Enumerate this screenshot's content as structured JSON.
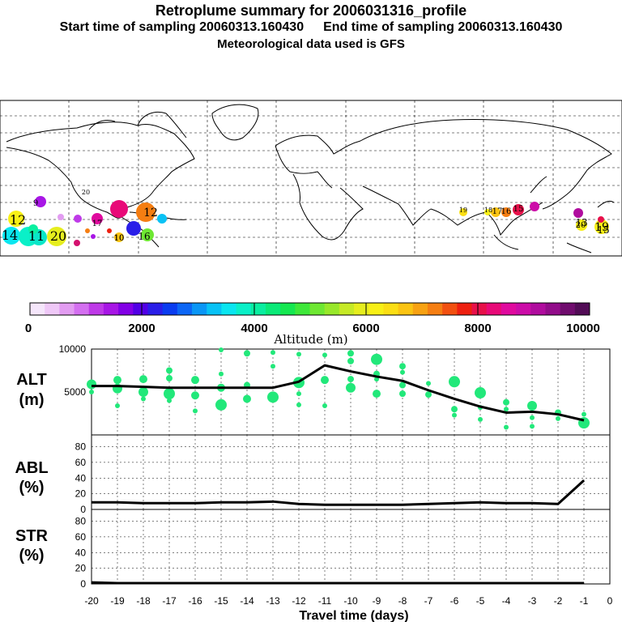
{
  "header": {
    "title": "Retroplume summary for 2006031316_profile",
    "start_label": "Start time of sampling 20060313.160430",
    "end_label": "End time of sampling 20060313.160430",
    "met_label": "Meteorological data used is GFS"
  },
  "colors": {
    "plume_dot": "#22e87a",
    "line": "#000000",
    "map_land": "#000000"
  },
  "map": {
    "labels": [
      {
        "text": "12"
      },
      {
        "text": "14"
      },
      {
        "text": "11"
      },
      {
        "text": "20"
      },
      {
        "text": "9"
      },
      {
        "text": "10"
      },
      {
        "text": "17"
      },
      {
        "text": "12"
      },
      {
        "text": "16"
      },
      {
        "text": "20"
      },
      {
        "text": "19"
      },
      {
        "text": "18"
      },
      {
        "text": "17"
      },
      {
        "text": "16"
      },
      {
        "text": "15"
      },
      {
        "text": "13"
      },
      {
        "text": "20"
      },
      {
        "text": "19"
      },
      {
        "text": "15"
      },
      {
        "text": "10"
      }
    ]
  },
  "colorbar": {
    "tick_labels": [
      "0",
      "2000",
      "4000",
      "6000",
      "8000",
      "10000"
    ],
    "title": "Altitude (m)",
    "colors": [
      "#f5e6fb",
      "#efc8f7",
      "#e29cf1",
      "#d46ff0",
      "#bf3ae8",
      "#a816e6",
      "#8200e6",
      "#5200e6",
      "#2a1ee8",
      "#0a3cf0",
      "#0c66f5",
      "#0a96f5",
      "#08c2f5",
      "#0ae6f0",
      "#0af0c8",
      "#0aeea0",
      "#0aea78",
      "#14e850",
      "#3ee83a",
      "#6ee832",
      "#98e82a",
      "#c6ea26",
      "#e6ee1e",
      "#f8f016",
      "#fbde14",
      "#fbc412",
      "#f8a212",
      "#f57e12",
      "#f25010",
      "#ee2010",
      "#e8104a",
      "#e80a78",
      "#e00a9e",
      "#cc0ca8",
      "#b00c9e",
      "#920c8a",
      "#700c6e",
      "#520c56"
    ]
  },
  "chart_data": [
    {
      "type": "line",
      "name": "ALT",
      "ylabel": "ALT\n(m)",
      "ylim": [
        0,
        10000
      ],
      "yticks": [
        5000,
        10000
      ],
      "x": [
        -20,
        -19,
        -18,
        -17,
        -16,
        -15,
        -14,
        -13,
        -12,
        -11,
        -10,
        -9,
        -8,
        -7,
        -6,
        -5,
        -4,
        -3,
        -2,
        -1
      ],
      "line_values": [
        5700,
        5700,
        5600,
        5500,
        5500,
        5500,
        5500,
        5500,
        6200,
        8100,
        7400,
        6800,
        6300,
        5200,
        4200,
        3300,
        2600,
        2700,
        2400,
        1700
      ],
      "scatter": [
        [
          -20,
          5900,
          6
        ],
        [
          -20,
          5000,
          3
        ],
        [
          -19,
          6400,
          5
        ],
        [
          -19,
          5400,
          6
        ],
        [
          -19,
          3400,
          3
        ],
        [
          -18,
          6500,
          5
        ],
        [
          -18,
          5000,
          6
        ],
        [
          -18,
          4200,
          3
        ],
        [
          -17,
          7500,
          4
        ],
        [
          -17,
          6600,
          4
        ],
        [
          -17,
          4800,
          7
        ],
        [
          -17,
          4000,
          3
        ],
        [
          -16,
          6400,
          5
        ],
        [
          -16,
          4600,
          5
        ],
        [
          -16,
          2800,
          3
        ],
        [
          -15,
          9900,
          3
        ],
        [
          -15,
          5500,
          5
        ],
        [
          -15,
          3500,
          7
        ],
        [
          -15,
          7100,
          3
        ],
        [
          -14,
          9500,
          4
        ],
        [
          -14,
          5800,
          4
        ],
        [
          -14,
          4200,
          5
        ],
        [
          -13,
          9600,
          3
        ],
        [
          -13,
          8000,
          3
        ],
        [
          -13,
          4400,
          7
        ],
        [
          -12,
          9400,
          3
        ],
        [
          -12,
          6100,
          7
        ],
        [
          -12,
          4800,
          3
        ],
        [
          -12,
          3500,
          3
        ],
        [
          -11,
          9300,
          3
        ],
        [
          -11,
          6400,
          5
        ],
        [
          -11,
          3400,
          3
        ],
        [
          -10,
          9500,
          4
        ],
        [
          -10,
          8600,
          4
        ],
        [
          -10,
          6500,
          4
        ],
        [
          -10,
          5500,
          6
        ],
        [
          -9,
          8800,
          7
        ],
        [
          -9,
          7100,
          4
        ],
        [
          -9,
          4800,
          5
        ],
        [
          -9,
          6500,
          3
        ],
        [
          -8,
          8000,
          4
        ],
        [
          -8,
          5800,
          4
        ],
        [
          -8,
          4800,
          4
        ],
        [
          -8,
          7300,
          3
        ],
        [
          -7,
          6000,
          3
        ],
        [
          -7,
          4700,
          4
        ],
        [
          -6,
          6200,
          7
        ],
        [
          -6,
          3000,
          4
        ],
        [
          -6,
          2300,
          3
        ],
        [
          -5,
          4900,
          7
        ],
        [
          -5,
          3200,
          3
        ],
        [
          -5,
          1800,
          3
        ],
        [
          -4,
          3800,
          4
        ],
        [
          -4,
          3000,
          3
        ],
        [
          -4,
          900,
          3
        ],
        [
          -3,
          3400,
          6
        ],
        [
          -3,
          2000,
          3
        ],
        [
          -3,
          1000,
          3
        ],
        [
          -2,
          2600,
          4
        ],
        [
          -2,
          1900,
          3
        ],
        [
          -1,
          2400,
          3
        ],
        [
          -1,
          1700,
          4
        ],
        [
          -1,
          1400,
          7
        ]
      ]
    },
    {
      "type": "line",
      "name": "ABL",
      "ylabel": "ABL\n(%)",
      "ylim": [
        0,
        95
      ],
      "yticks": [
        0,
        20,
        40,
        60,
        80
      ],
      "x": [
        -20,
        -19,
        -18,
        -17,
        -16,
        -15,
        -14,
        -13,
        -12,
        -11,
        -10,
        -9,
        -8,
        -7,
        -6,
        -5,
        -4,
        -3,
        -2,
        -1
      ],
      "values": [
        9,
        9,
        8,
        8,
        8,
        9,
        9,
        10,
        7,
        6,
        6,
        6,
        6,
        7,
        8,
        9,
        8,
        8,
        7,
        37
      ]
    },
    {
      "type": "line",
      "name": "STR",
      "ylabel": "STR\n(%)",
      "ylim": [
        0,
        95
      ],
      "yticks": [
        0,
        20,
        40,
        60,
        80
      ],
      "x": [
        -20,
        -19,
        -18,
        -17,
        -16,
        -15,
        -14,
        -13,
        -12,
        -11,
        -10,
        -9,
        -8,
        -7,
        -6,
        -5,
        -4,
        -3,
        -2,
        -1
      ],
      "values": [
        2,
        1,
        1,
        1,
        1,
        1,
        1,
        1,
        1,
        1,
        1,
        1,
        1,
        1,
        1,
        1,
        1,
        1,
        1,
        1
      ],
      "xlabel": "Travel time (days)",
      "xtick_labels": [
        "-20",
        "-19",
        "-18",
        "-17",
        "-16",
        "-15",
        "-14",
        "-13",
        "-12",
        "-11",
        "-10",
        "-9",
        "-8",
        "-7",
        "-6",
        "-5",
        "-4",
        "-3",
        "-2",
        "-1",
        "0"
      ]
    }
  ]
}
